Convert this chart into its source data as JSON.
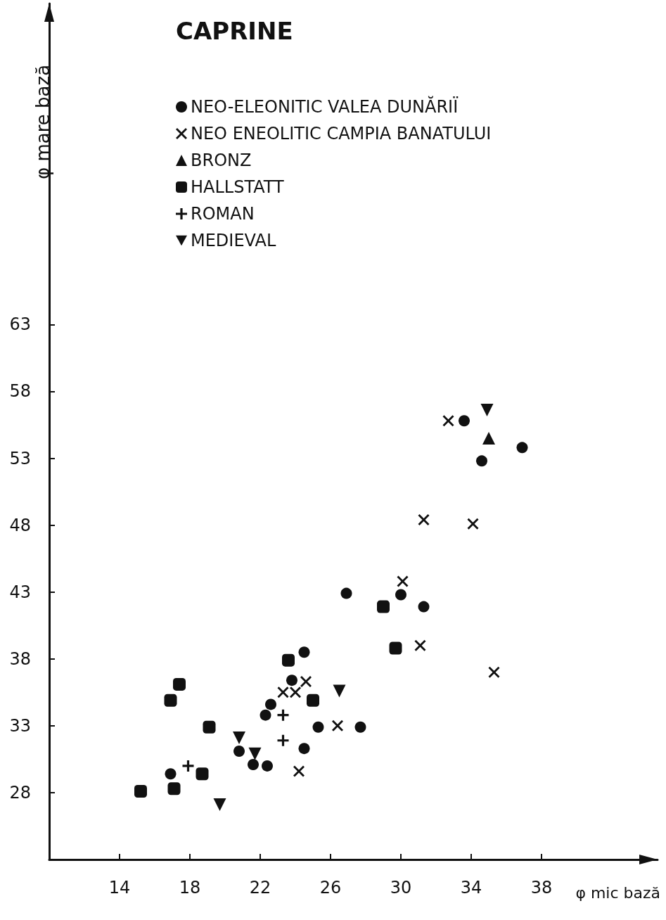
{
  "chart_data": {
    "type": "scatter",
    "title": "CAPRINE",
    "xlabel": "φ mic bază",
    "ylabel": "φ mare bază",
    "xlim": [
      10,
      44.6
    ],
    "ylim": [
      23,
      87
    ],
    "xticks": [
      14,
      18,
      22,
      26,
      30,
      34,
      38
    ],
    "yticks": [
      28,
      33,
      38,
      43,
      48,
      53,
      58,
      63
    ],
    "grid": false,
    "legend": "top left",
    "series": [
      {
        "name": "NEO-ELEONITIC VALEA DUNĂRIÏ",
        "color": "#111111",
        "marker": "circle",
        "x": [
          16.9,
          20.8,
          21.6,
          22.4,
          22.3,
          22.6,
          23.8,
          24.5,
          24.5,
          25.3,
          27.7,
          26.9,
          30.0,
          31.3,
          33.6,
          34.6,
          36.9
        ],
        "values": [
          29.4,
          31.1,
          30.1,
          30.0,
          33.8,
          34.6,
          36.4,
          38.5,
          31.3,
          32.9,
          32.9,
          42.9,
          42.8,
          41.9,
          55.8,
          52.8,
          53.8
        ]
      },
      {
        "name": "NEO ENEOLITIC CAMPIA BANATULUI",
        "color": "#111111",
        "marker": "cross",
        "x": [
          32.7,
          31.3,
          34.1,
          30.1,
          31.1,
          35.3,
          24.6,
          23.3,
          24.0,
          26.4,
          24.2
        ],
        "values": [
          55.8,
          48.4,
          48.1,
          43.8,
          39.0,
          37.0,
          36.3,
          35.5,
          35.5,
          33.0,
          29.6
        ]
      },
      {
        "name": "BRONZ",
        "color": "#111111",
        "marker": "triangle",
        "x": [
          35.0
        ],
        "values": [
          54.5
        ]
      },
      {
        "name": "HALLSTATT",
        "color": "#111111",
        "marker": "square",
        "x": [
          23.6,
          19.1,
          18.7,
          15.2,
          17.1,
          16.9,
          17.4,
          25.0,
          29.0,
          29.7
        ],
        "values": [
          37.9,
          32.9,
          29.4,
          28.1,
          28.3,
          34.9,
          36.1,
          34.9,
          41.9,
          38.8
        ]
      },
      {
        "name": "ROMAN",
        "color": "#111111",
        "marker": "plus",
        "x": [
          17.9,
          23.3,
          23.3
        ],
        "values": [
          30.0,
          33.8,
          31.9
        ]
      },
      {
        "name": "MEDIEVAL",
        "color": "#111111",
        "marker": "triangle-down",
        "x": [
          19.7,
          20.8,
          21.7,
          26.5,
          34.9
        ],
        "values": [
          27.1,
          32.1,
          30.9,
          35.6,
          56.6
        ]
      }
    ]
  }
}
